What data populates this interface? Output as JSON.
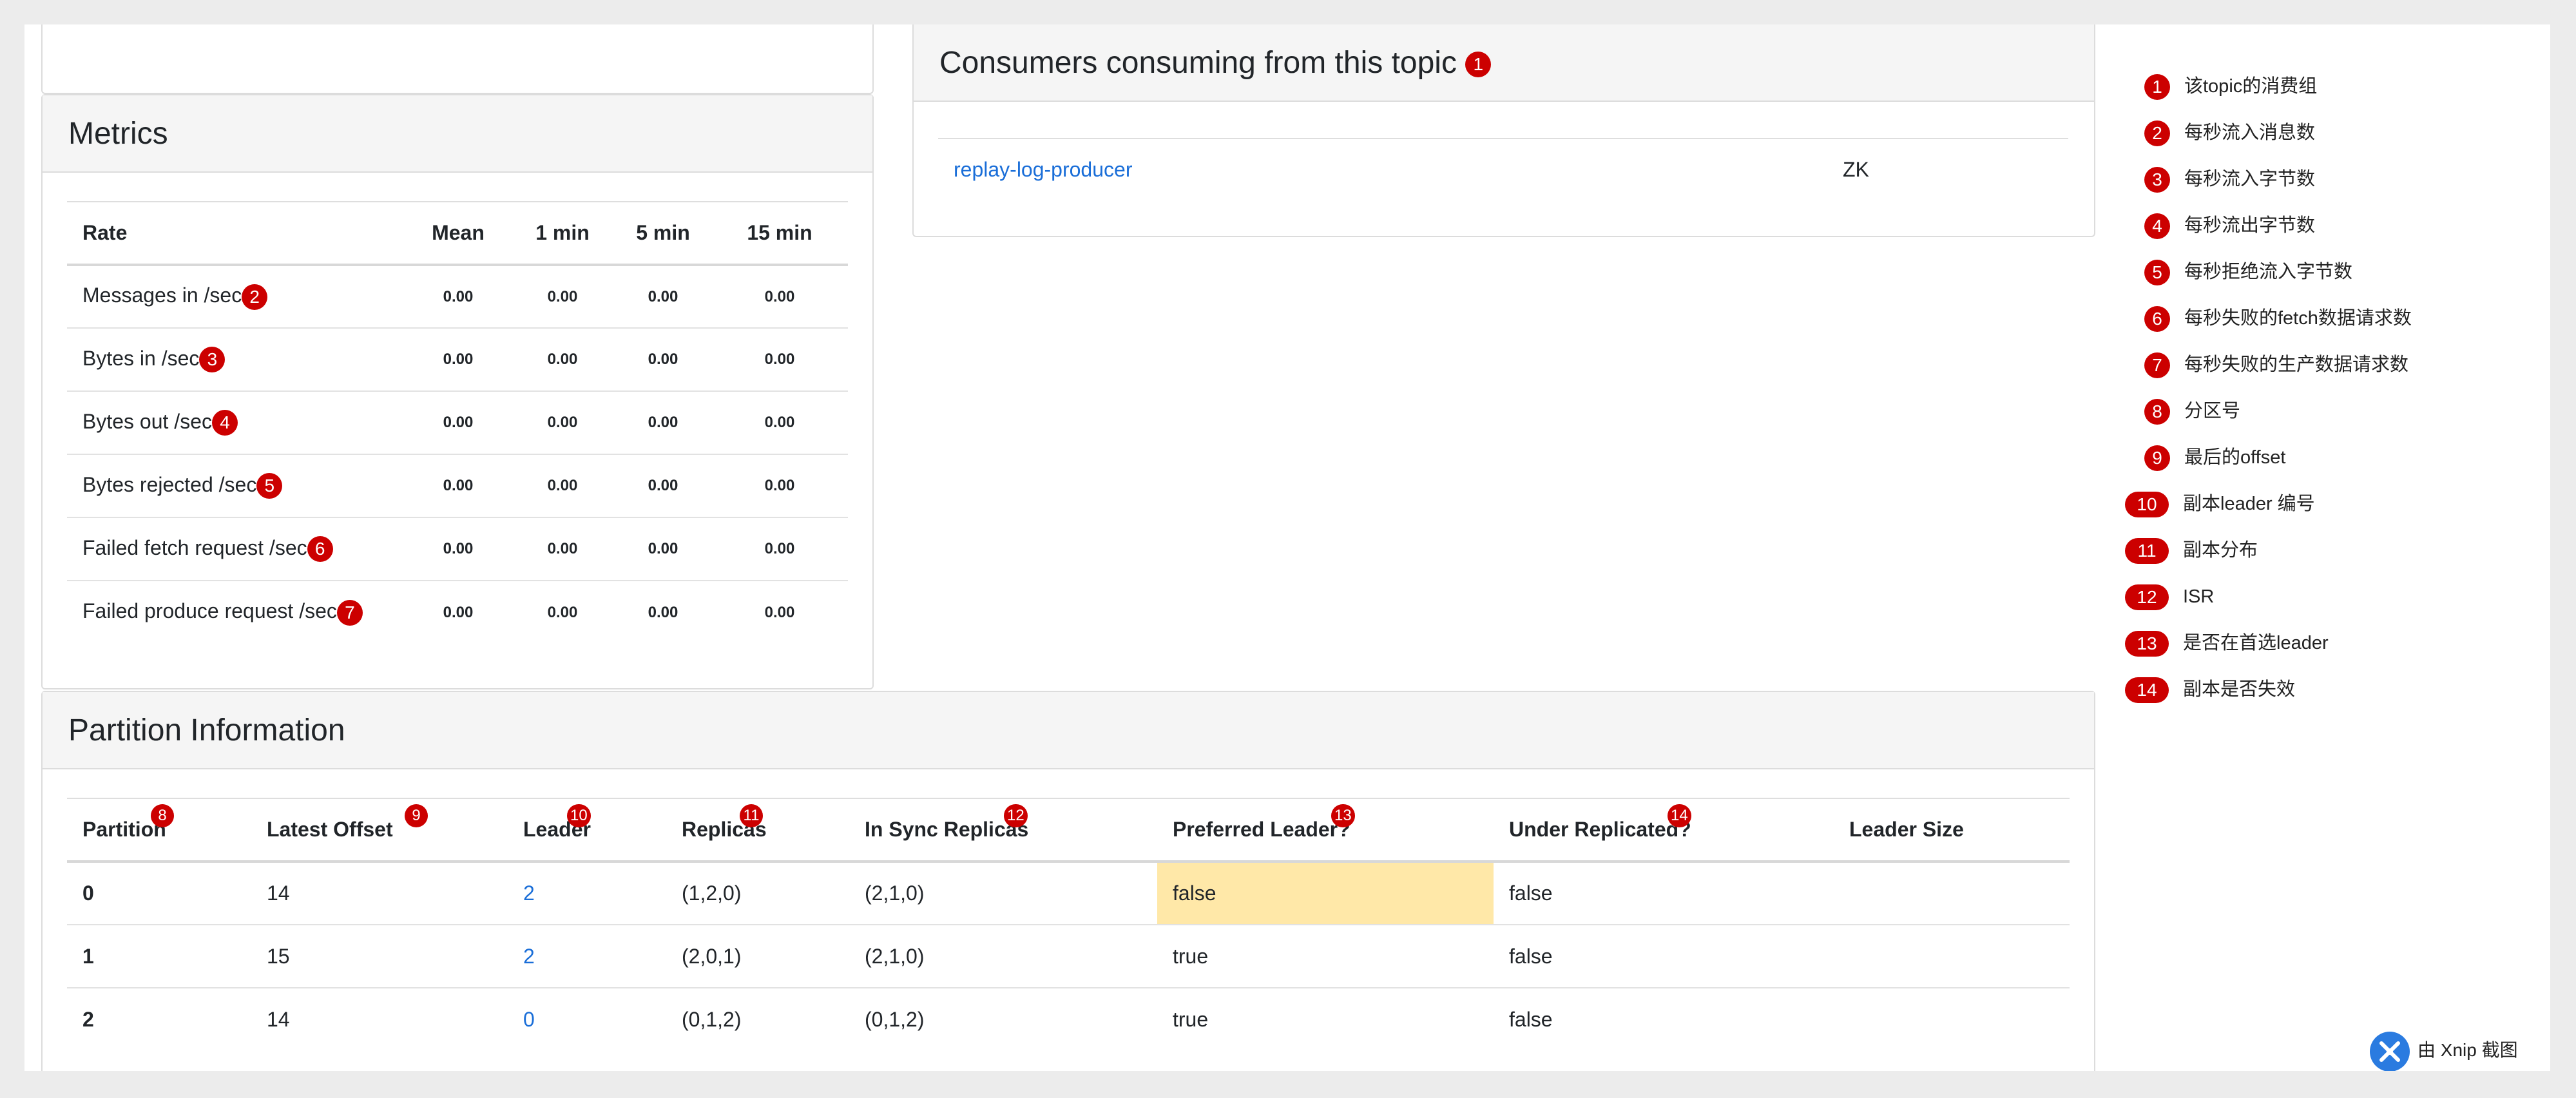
{
  "metrics": {
    "title": "Metrics",
    "columns": [
      "Rate",
      "Mean",
      "1 min",
      "5 min",
      "15 min"
    ],
    "rows": [
      {
        "label": "Messages in /sec",
        "badge": "2",
        "mean": "0.00",
        "m1": "0.00",
        "m5": "0.00",
        "m15": "0.00"
      },
      {
        "label": "Bytes in /sec",
        "badge": "3",
        "mean": "0.00",
        "m1": "0.00",
        "m5": "0.00",
        "m15": "0.00"
      },
      {
        "label": "Bytes out /sec",
        "badge": "4",
        "mean": "0.00",
        "m1": "0.00",
        "m5": "0.00",
        "m15": "0.00"
      },
      {
        "label": "Bytes rejected /sec",
        "badge": "5",
        "mean": "0.00",
        "m1": "0.00",
        "m5": "0.00",
        "m15": "0.00"
      },
      {
        "label": "Failed fetch request /sec",
        "badge": "6",
        "mean": "0.00",
        "m1": "0.00",
        "m5": "0.00",
        "m15": "0.00"
      },
      {
        "label": "Failed produce request /sec",
        "badge": "7",
        "mean": "0.00",
        "m1": "0.00",
        "m5": "0.00",
        "m15": "0.00"
      }
    ]
  },
  "consumers": {
    "title": "Consumers consuming from this topic",
    "badge": "1",
    "rows": [
      {
        "name": "replay-log-producer",
        "type": "ZK"
      }
    ]
  },
  "partitions": {
    "title": "Partition Information",
    "columns": [
      {
        "label": "Partition",
        "badge": "8"
      },
      {
        "label": "Latest Offset",
        "badge": "9"
      },
      {
        "label": "Leader",
        "badge": "10"
      },
      {
        "label": "Replicas",
        "badge": "11"
      },
      {
        "label": "In Sync Replicas",
        "badge": "12"
      },
      {
        "label": "Preferred Leader?",
        "badge": "13"
      },
      {
        "label": "Under Replicated?",
        "badge": "14"
      },
      {
        "label": "Leader Size",
        "badge": ""
      }
    ],
    "rows": [
      {
        "partition": "0",
        "offset": "14",
        "leader": "2",
        "replicas": "(1,2,0)",
        "isr": "(2,1,0)",
        "preferred": "false",
        "under": "false",
        "size": ""
      },
      {
        "partition": "1",
        "offset": "15",
        "leader": "2",
        "replicas": "(2,0,1)",
        "isr": "(2,1,0)",
        "preferred": "true",
        "under": "false",
        "size": ""
      },
      {
        "partition": "2",
        "offset": "14",
        "leader": "0",
        "replicas": "(0,1,2)",
        "isr": "(0,1,2)",
        "preferred": "true",
        "under": "false",
        "size": ""
      }
    ]
  },
  "legend": [
    {
      "num": "1",
      "text": "该topic的消费组"
    },
    {
      "num": "2",
      "text": "每秒流入消息数"
    },
    {
      "num": "3",
      "text": "每秒流入字节数"
    },
    {
      "num": "4",
      "text": "每秒流出字节数"
    },
    {
      "num": "5",
      "text": "每秒拒绝流入字节数"
    },
    {
      "num": "6",
      "text": "每秒失败的fetch数据请求数"
    },
    {
      "num": "7",
      "text": "每秒失败的生产数据请求数"
    },
    {
      "num": "8",
      "text": "分区号"
    },
    {
      "num": "9",
      "text": "最后的offset"
    },
    {
      "num": "10",
      "text": "副本leader 编号"
    },
    {
      "num": "11",
      "text": "副本分布"
    },
    {
      "num": "12",
      "text": "ISR"
    },
    {
      "num": "13",
      "text": "是否在首选leader"
    },
    {
      "num": "14",
      "text": "副本是否失效"
    }
  ],
  "watermark": {
    "text": "由 Xnip 截图"
  },
  "colors": {
    "badge": "#cc0000",
    "link": "#1a6ed8",
    "highlight": "#ffe8a8",
    "header_bg": "#f5f5f5"
  }
}
